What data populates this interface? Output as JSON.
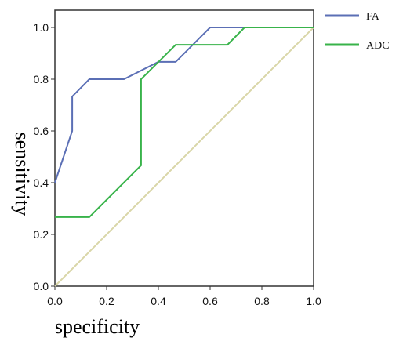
{
  "chart_data": {
    "type": "line",
    "title": "",
    "xlabel": "specificity",
    "ylabel": "sensitivity",
    "xlim": [
      0.0,
      1.0
    ],
    "ylim": [
      0.0,
      1.0
    ],
    "x_ticks": [
      "0.0",
      "0.2",
      "0.4",
      "0.6",
      "0.8",
      "1.0"
    ],
    "y_ticks": [
      "0.0",
      "0.2",
      "0.4",
      "0.6",
      "0.8",
      "1.0"
    ],
    "grid": false,
    "legend_position": "right-top, outside plot",
    "series": [
      {
        "name": "FA",
        "color": "#5b6fb5",
        "points": [
          [
            0.0,
            0.4
          ],
          [
            0.067,
            0.6
          ],
          [
            0.067,
            0.733
          ],
          [
            0.133,
            0.8
          ],
          [
            0.267,
            0.8
          ],
          [
            0.4,
            0.867
          ],
          [
            0.467,
            0.867
          ],
          [
            0.6,
            1.0
          ],
          [
            1.0,
            1.0
          ]
        ]
      },
      {
        "name": "ADC",
        "color": "#38b34a",
        "points": [
          [
            0.0,
            0.267
          ],
          [
            0.133,
            0.267
          ],
          [
            0.333,
            0.467
          ],
          [
            0.333,
            0.8
          ],
          [
            0.467,
            0.933
          ],
          [
            0.667,
            0.933
          ],
          [
            0.733,
            1.0
          ],
          [
            1.0,
            1.0
          ]
        ]
      }
    ],
    "reference_line": {
      "color": "#d9d6a8",
      "from": [
        0.0,
        0.0
      ],
      "to": [
        1.0,
        1.0
      ]
    }
  }
}
